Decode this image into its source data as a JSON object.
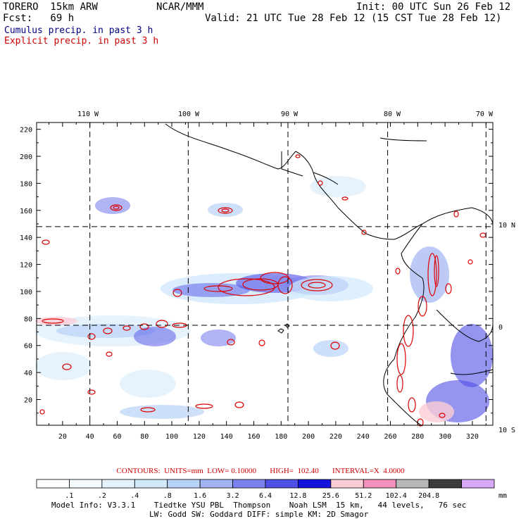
{
  "header": {
    "model": "TORERO  15km ARW",
    "org": "NCAR/MMM",
    "init": "Init: 00 UTC Sun 26 Feb 12",
    "fcst": "Fcst:   69 h",
    "valid": "Valid: 21 UTC Tue 28 Feb 12 (15 CST Tue 28 Feb 12)",
    "field1": "Cumulus precip. in past 3 h",
    "field2": "Explicit precip. in past 3 h",
    "field1_color": "#000080",
    "field2_color": "#cc0000"
  },
  "chart_data": {
    "type": "map",
    "top_lon_labels": [
      "110 W",
      "100 W",
      "90 W",
      "80 W",
      "70 W"
    ],
    "right_lat_labels": [
      "10 N",
      "0",
      "10 S"
    ],
    "x_ticks": [
      "20",
      "40",
      "60",
      "80",
      "100",
      "120",
      "140",
      "160",
      "180",
      "200",
      "220",
      "240",
      "260",
      "280",
      "300",
      "320"
    ],
    "y_ticks": [
      "20",
      "40",
      "60",
      "80",
      "100",
      "120",
      "140",
      "160",
      "180",
      "200",
      "220"
    ],
    "xlim": [
      1,
      335
    ],
    "ylim": [
      1,
      225
    ],
    "grid_x": [
      40,
      112,
      185,
      258,
      330
    ],
    "grid_y": [
      148,
      75
    ],
    "contour_color": "#dd0000"
  },
  "footer": {
    "contours_line": "CONTOURS:  UNITS=mm  LOW= 0.10000       HIGH=  102.40       INTERVAL=X  4.0000",
    "colorbar_labels": [
      ".1",
      ".2",
      ".4",
      ".8",
      "1.6",
      "3.2",
      "6.4",
      "12.8",
      "25.6",
      "51.2",
      "102.4",
      "204.8",
      "mm"
    ],
    "colorbar_colors": [
      "#ffffff",
      "#f4fbff",
      "#e3f2fc",
      "#d2e9fb",
      "#b9d2f7",
      "#a3b4f2",
      "#7b80ec",
      "#4e4fe6",
      "#1414dc",
      "#fbcdd6",
      "#f58fbd",
      "#b9b9b9",
      "#3c3c3c",
      "#d9a8f6"
    ],
    "model_info": "Model Info: V3.3.1    Tiedtke YSU PBL  Thompson    Noah LSM  15 km,   44 levels,   76 sec",
    "model_info2": "LW: Godd SW: Goddard DIFF: simple KM: 2D Smagor"
  }
}
